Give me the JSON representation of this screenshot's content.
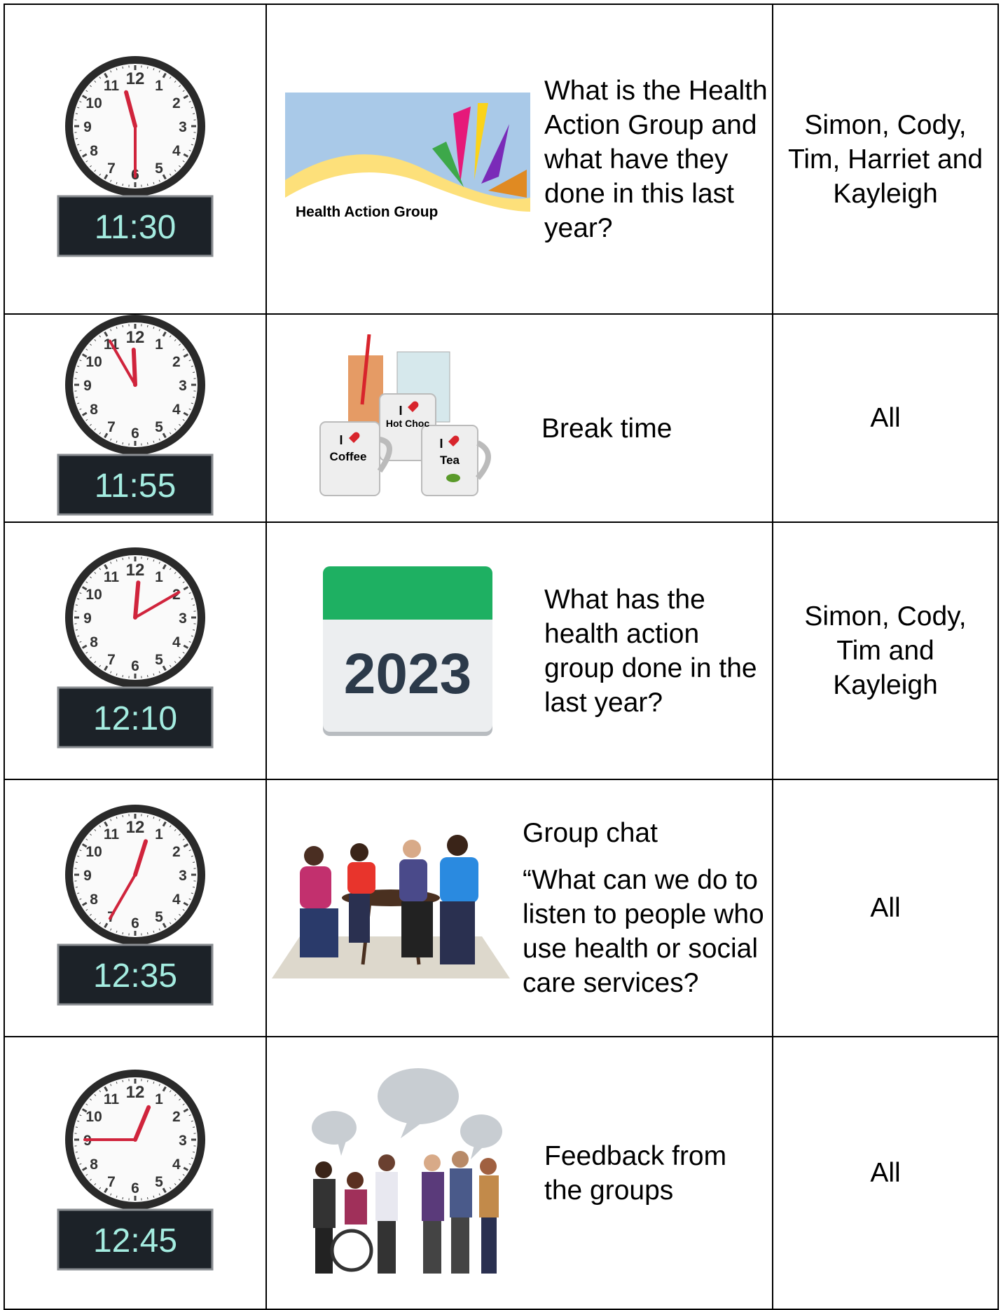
{
  "clock_numerals": [
    "12",
    "1",
    "2",
    "3",
    "4",
    "5",
    "6",
    "7",
    "8",
    "9",
    "10",
    "11"
  ],
  "rows": [
    {
      "time": "11:30",
      "picture_text": [
        "Health Action Group"
      ],
      "activity": [
        "What is the Health Action Group and what have they done in this last year?"
      ],
      "people": "Simon, Cody, Tim, Harriet and Kayleigh"
    },
    {
      "time": "11:55",
      "picture_text": [
        "I",
        "Hot Choc",
        "I",
        "Coffee",
        "I",
        "Tea"
      ],
      "activity": [
        "Break time"
      ],
      "people": "All"
    },
    {
      "time": "12:10",
      "picture_text": [
        "2023"
      ],
      "activity": [
        "What has the health action group done in the last year?"
      ],
      "people": "Simon, Cody, Tim and Kayleigh"
    },
    {
      "time": "12:35",
      "picture_text": [],
      "activity": [
        "Group chat",
        "“What can we do to listen to people who use health or social care services?"
      ],
      "people": "All"
    },
    {
      "time": "12:45",
      "picture_text": [],
      "activity": [
        "Feedback from the groups"
      ],
      "people": "All"
    }
  ]
}
